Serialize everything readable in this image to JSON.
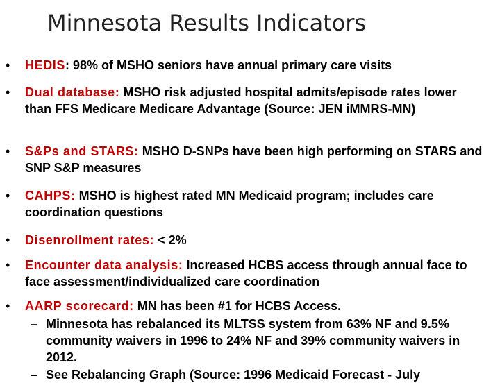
{
  "slide": {
    "title": "Minnesota Results Indicators",
    "bullet_marker": "•",
    "sub_marker": "–",
    "bullets": [
      {
        "lead": "HEDIS",
        "text": ": 98% of MSHO seniors have annual primary care visits"
      },
      {
        "lead": "Dual database:",
        "text": " MSHO risk adjusted hospital admits/episode rates lower than FFS Medicare Medicare Advantage (Source: JEN iMMRS-MN)"
      },
      {
        "lead": "S&Ps and STARS:",
        "text": " MSHO D-SNPs have been high performing on STARS and SNP S&P measures"
      },
      {
        "lead": "CAHPS:",
        "text": " MSHO is highest rated MN Medicaid program; includes care coordination questions"
      },
      {
        "lead": "Disenrollment rates:",
        "text": " < 2%"
      },
      {
        "lead": "Encounter data analysis:",
        "text": " Increased HCBS access through annual face to face assessment/individualized care coordination"
      },
      {
        "lead": "AARP scorecard:",
        "text": " MN has been #1 for HCBS Access."
      }
    ],
    "subbullets": [
      {
        "text": "Minnesota has rebalanced its MLTSS system from 63% NF and 9.5% community waivers in 1996 to 24% NF and 39% community waivers in 2012."
      },
      {
        "text": "See Rebalancing Graph (Source: 1996 Medicaid Forecast - July"
      }
    ]
  }
}
